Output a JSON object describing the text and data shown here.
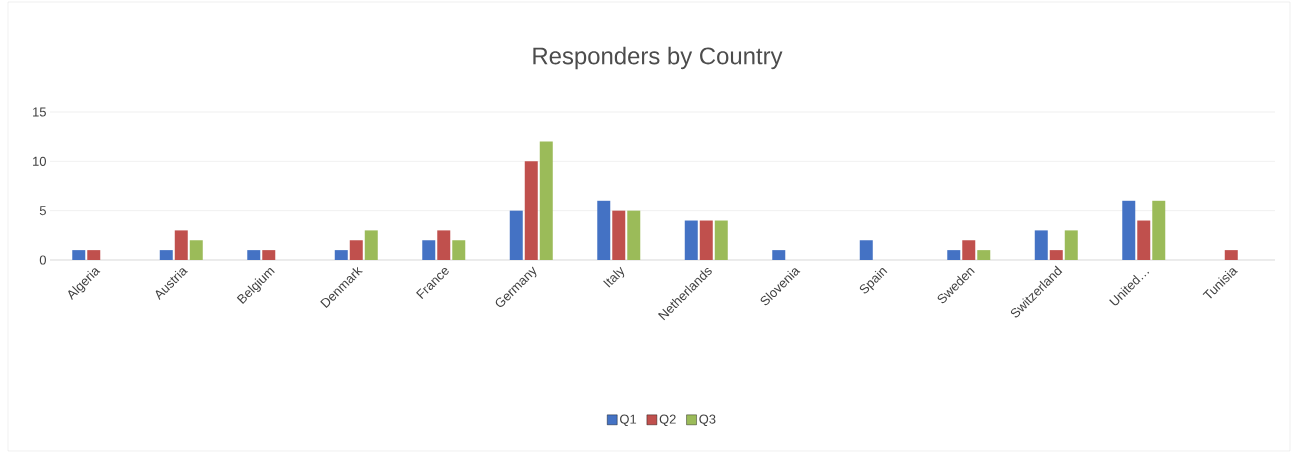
{
  "chart_data": {
    "type": "bar",
    "title": "Responders by Country",
    "categories": [
      "Algeria",
      "Austria",
      "Belgium",
      "Denmark",
      "France",
      "Germany",
      "Italy",
      "Netherlands",
      "Slovenia",
      "Spain",
      "Sweden",
      "Switzerland",
      "United…",
      "Tunisia"
    ],
    "series": [
      {
        "name": "Q1",
        "color": "#4472c4",
        "values": [
          1,
          1,
          1,
          1,
          2,
          5,
          6,
          4,
          1,
          2,
          1,
          3,
          6,
          null
        ]
      },
      {
        "name": "Q2",
        "color": "#c0504d",
        "values": [
          1,
          3,
          1,
          2,
          3,
          10,
          5,
          4,
          null,
          null,
          2,
          1,
          4,
          1
        ]
      },
      {
        "name": "Q3",
        "color": "#9bbb59",
        "values": [
          null,
          2,
          null,
          3,
          2,
          12,
          5,
          4,
          null,
          null,
          1,
          3,
          6,
          null
        ]
      }
    ],
    "ylim": [
      0,
      15
    ],
    "yticks": [
      0,
      5,
      10,
      15
    ],
    "grid": "y",
    "legend": "bottom"
  }
}
